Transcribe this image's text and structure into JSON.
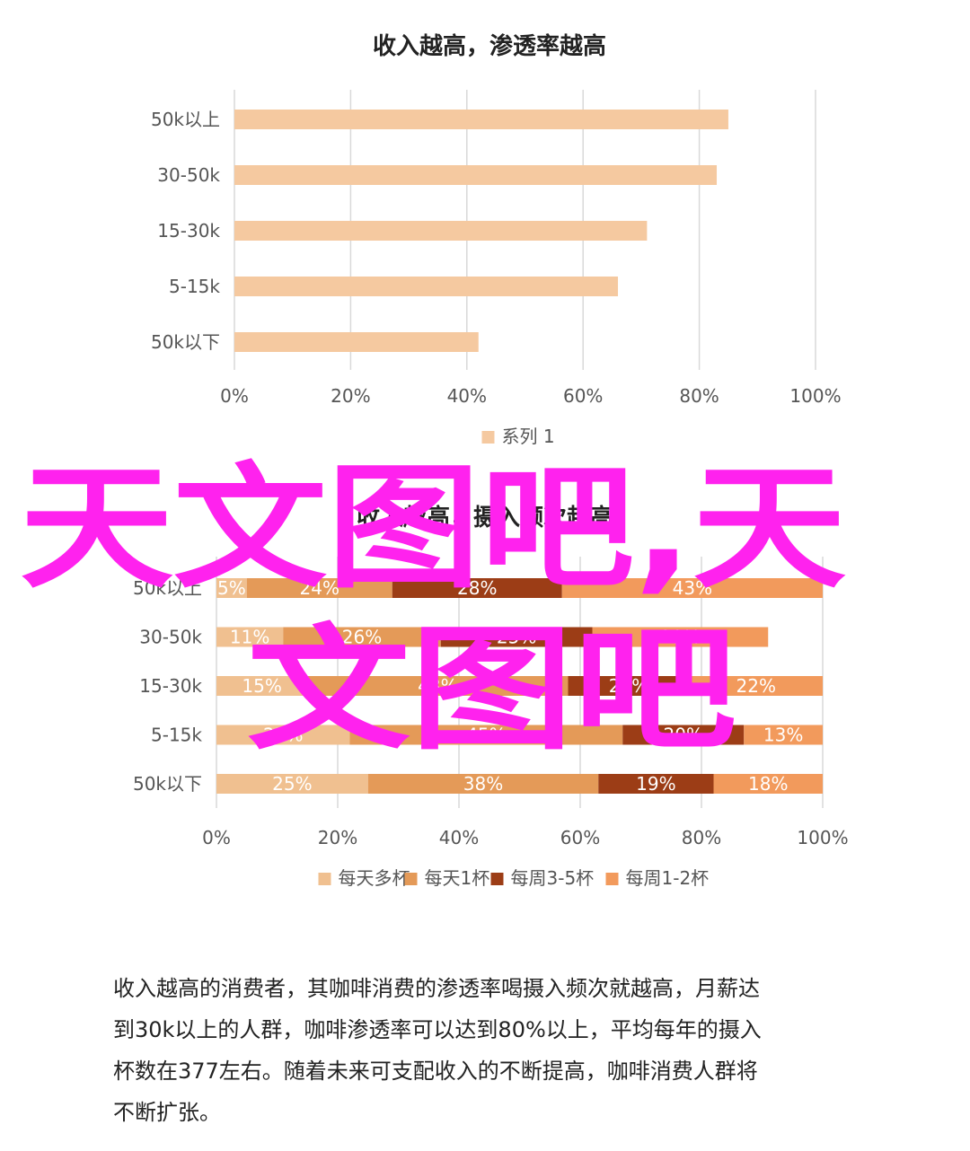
{
  "chart_data": [
    {
      "type": "bar",
      "orientation": "horizontal",
      "title": "收入越高，渗透率越高",
      "categories": [
        "50k以上",
        "30-50k",
        "15-30k",
        "5-15k",
        "50k以下"
      ],
      "series": [
        {
          "name": "系列 1",
          "values": [
            85,
            83,
            71,
            66,
            42
          ]
        }
      ],
      "xlim": [
        0,
        100
      ],
      "xticks": [
        "0%",
        "20%",
        "40%",
        "60%",
        "80%",
        "100%"
      ],
      "grid": true,
      "legend_position": "bottom",
      "colors": [
        "#f5c9a0"
      ]
    },
    {
      "type": "bar",
      "orientation": "horizontal",
      "stacked": "percent",
      "title": "收入越高，摄入频次越高",
      "categories": [
        "50k以上",
        "30-50k",
        "15-30k",
        "5-15k",
        "50k以下"
      ],
      "series": [
        {
          "name": "每天多杯",
          "values": [
            5,
            11,
            15,
            22,
            25
          ],
          "labels": [
            "5%",
            "11%",
            "15%",
            "22%",
            "25%"
          ]
        },
        {
          "name": "每天1杯",
          "values": [
            24,
            26,
            43,
            45,
            38
          ],
          "labels": [
            "24%",
            "26%",
            "43%",
            "45%",
            "38%"
          ]
        },
        {
          "name": "每周3-5杯",
          "values": [
            28,
            25,
            20,
            20,
            19
          ],
          "labels": [
            "28%",
            "25%",
            "20%",
            "20%",
            "19%"
          ]
        },
        {
          "name": "每周1-2杯",
          "values": [
            43,
            29,
            22,
            13,
            18
          ],
          "labels": [
            "43%",
            "29%",
            "22%",
            "13%",
            "18%"
          ]
        }
      ],
      "xlim": [
        0,
        100
      ],
      "xticks": [
        "0%",
        "20%",
        "40%",
        "60%",
        "80%",
        "100%"
      ],
      "grid": true,
      "legend_position": "bottom",
      "colors": [
        "#f0c090",
        "#e49a58",
        "#9c3d16",
        "#f29a5c"
      ]
    }
  ],
  "watermark": {
    "line1": "天文图吧,天",
    "line2": "文图吧",
    "color": "#ff22ee"
  },
  "paragraph": {
    "lines": [
      "收入越高的消费者，其咖啡消费的渗透率喝摄入频次就越高，月薪达",
      "到30k以上的人群，咖啡渗透率可以达到80%以上，平均每年的摄入",
      "杯数在377左右。随着未来可支配收入的不断提高，咖啡消费人群将",
      "不断扩张。"
    ]
  }
}
